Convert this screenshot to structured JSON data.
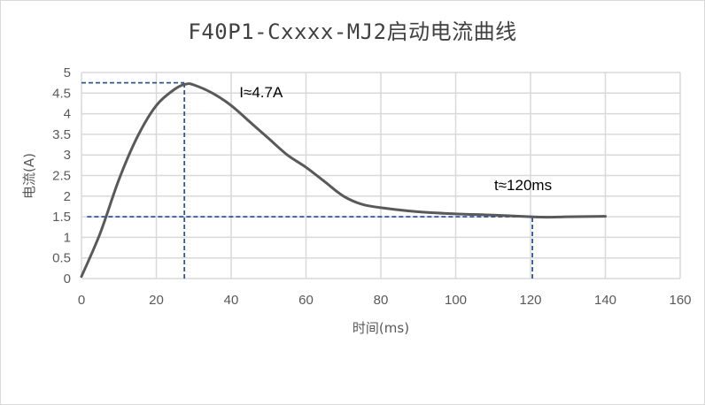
{
  "title": "F40P1-Cxxxx-MJ2启动电流曲线",
  "chart_data": {
    "type": "line",
    "title": "F40P1-Cxxxx-MJ2启动电流曲线",
    "xlabel": "时间(ms)",
    "ylabel": "电流(A)",
    "xlim": [
      0,
      160
    ],
    "ylim": [
      0,
      5
    ],
    "x_ticks": [
      0,
      20,
      40,
      60,
      80,
      100,
      120,
      140,
      160
    ],
    "y_ticks": [
      0,
      0.5,
      1,
      1.5,
      2,
      2.5,
      3,
      3.5,
      4,
      4.5,
      5
    ],
    "y_tick_labels": [
      "0",
      "0.5",
      "1",
      "1.5",
      "2",
      "2.5",
      "3",
      "3.5",
      "4",
      "4.5",
      "5"
    ],
    "grid": true,
    "legend": "none",
    "series": [
      {
        "name": "启动电流",
        "color": "#595959",
        "x": [
          0,
          5,
          10,
          15,
          20,
          25,
          28,
          30,
          35,
          40,
          45,
          50,
          55,
          60,
          65,
          70,
          75,
          80,
          90,
          100,
          110,
          120,
          125,
          130,
          140
        ],
        "values": [
          0.05,
          1.1,
          2.4,
          3.45,
          4.2,
          4.6,
          4.72,
          4.7,
          4.5,
          4.2,
          3.8,
          3.4,
          3.0,
          2.7,
          2.35,
          2.0,
          1.8,
          1.72,
          1.62,
          1.57,
          1.54,
          1.5,
          1.49,
          1.5,
          1.51
        ]
      }
    ],
    "reference_lines": [
      {
        "orientation": "horizontal",
        "y": 4.75,
        "x_from": 0,
        "x_to": 27.5,
        "color": "#2f5597",
        "style": "dashed"
      },
      {
        "orientation": "vertical",
        "x": 27.5,
        "y_from": 0,
        "y_to": 4.75,
        "color": "#2f5597",
        "style": "dashed"
      },
      {
        "orientation": "horizontal",
        "y": 1.5,
        "x_from": 1.5,
        "x_to": 120.5,
        "color": "#2f5597",
        "style": "dashed"
      },
      {
        "orientation": "vertical",
        "x": 120.5,
        "y_from": 0,
        "y_to": 1.5,
        "color": "#2f5597",
        "style": "dashed"
      }
    ],
    "annotations": [
      {
        "text": "I≈4.7A",
        "x": 48,
        "y": 4.4
      },
      {
        "text": "t≈120ms",
        "x": 118,
        "y": 2.15
      }
    ]
  }
}
